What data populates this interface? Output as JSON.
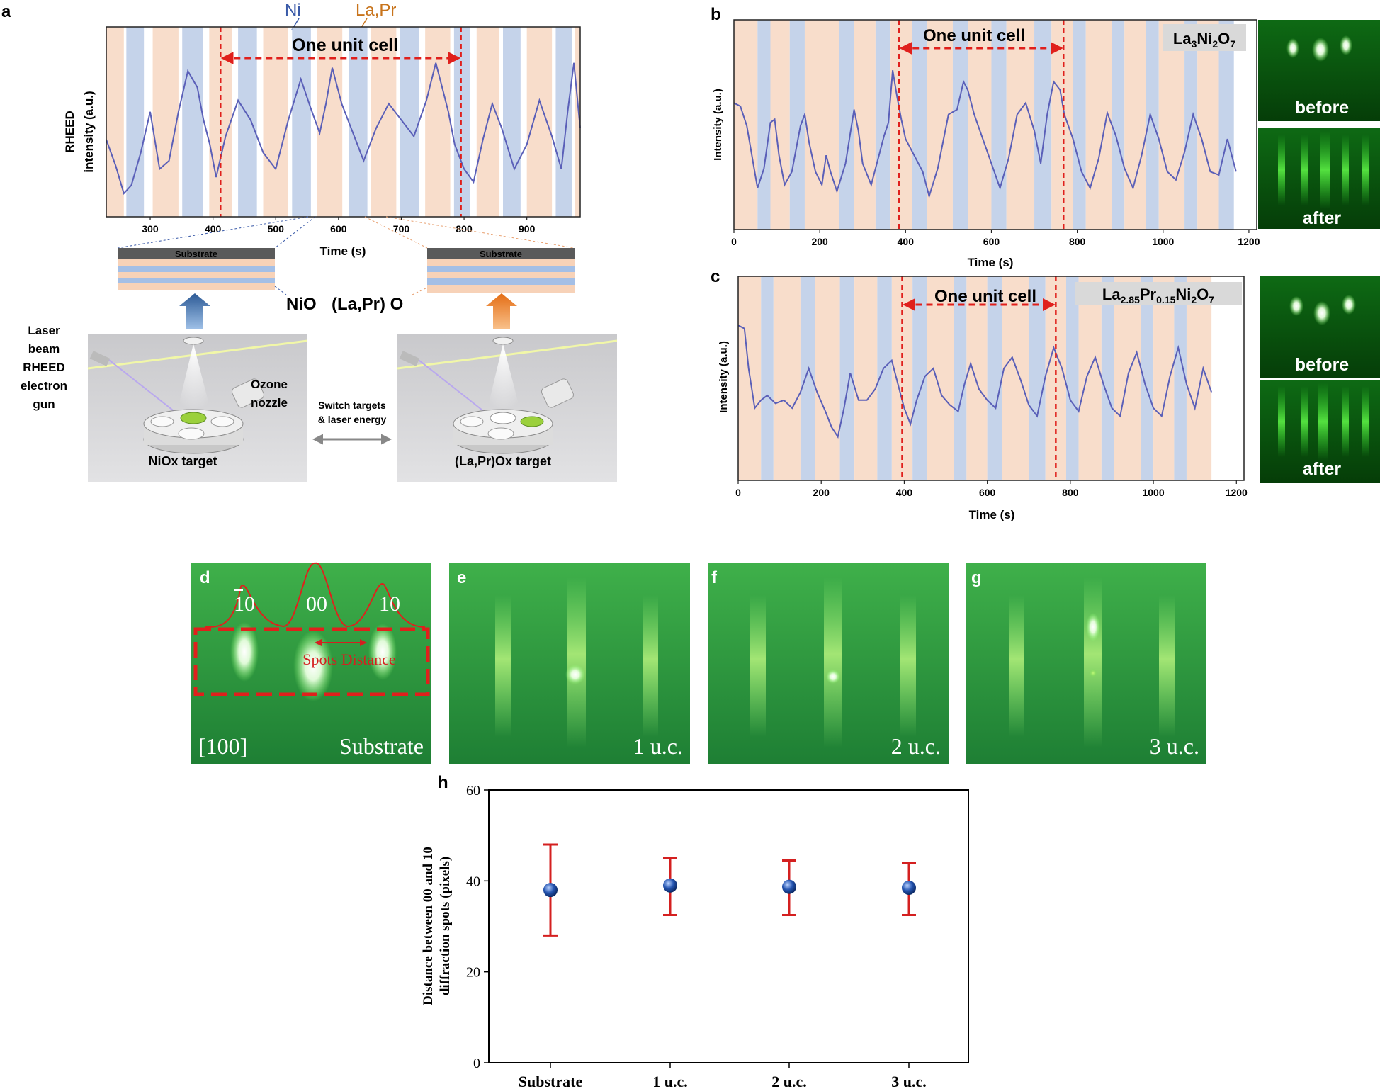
{
  "panel_labels": {
    "a": "a",
    "b": "b",
    "c": "c",
    "d": "d",
    "e": "e",
    "f": "f",
    "g": "g",
    "h": "h"
  },
  "colors": {
    "ni_band": "#c5d3ea",
    "lapr_band": "#f8ddcb",
    "trace": "#5a5fb8",
    "trace_dark": "#2a2fa8",
    "unit_cell": "#e0201c",
    "ni_text": "#3a5aa8",
    "lapr_text": "#c8741c",
    "rheed_green": "#2e9e3a",
    "errorbar": "#d42020",
    "marker": "#1d4b9a"
  },
  "panel_a": {
    "legend_ni": "Ni",
    "legend_lapr": "La,Pr",
    "unit_cell": "One unit cell",
    "ylabel_line1": "RHEED",
    "ylabel_line2": "intensity (a.u.)",
    "xlabel": "Time (s)",
    "xticks": [
      "300",
      "400",
      "500",
      "600",
      "700",
      "800",
      "900"
    ],
    "substrate_left": "Substrate",
    "substrate_right": "Substrate",
    "nio": "NiO",
    "lapro": "(La,Pr) O",
    "laser_label": [
      "Laser",
      "beam",
      "RHEED",
      "electron",
      "gun"
    ],
    "ozone_label": [
      "Ozone",
      "nozzle"
    ],
    "switch_label": [
      "Switch targets",
      "& laser energy"
    ],
    "target_left": "NiOx target",
    "target_right": "(La,Pr)Ox target"
  },
  "panel_b": {
    "unit_cell": "One unit cell",
    "sample_main": "La",
    "sample_sub1": "3",
    "sample_mid": "Ni",
    "sample_sub2": "2",
    "sample_end": "O",
    "sample_sub3": "7",
    "ylabel": "Intensity (a.u.)",
    "xlabel": "Time (s)",
    "xticks": [
      "0",
      "200",
      "400",
      "600",
      "800",
      "1000",
      "1200"
    ],
    "before": "before",
    "after": "after"
  },
  "panel_c": {
    "unit_cell": "One unit cell",
    "sample_main": "La",
    "sample_sub1": "2.85",
    "sample_mid": "Pr",
    "sample_sub2": "0.15",
    "sample_mid2": "Ni",
    "sample_sub3": "2",
    "sample_end": "O",
    "sample_sub4": "7",
    "ylabel": "Intensity (a.u.)",
    "xlabel": "Time (s)",
    "xticks": [
      "0",
      "200",
      "400",
      "600",
      "800",
      "1000",
      "1200"
    ],
    "before": "before",
    "after": "after"
  },
  "panel_d": {
    "spot_bar10": "10",
    "spot_00": "00",
    "spot_10": "10",
    "spots_distance": "Spots Distance",
    "direction": "[100]",
    "caption": "Substrate"
  },
  "panel_e": {
    "caption": "1 u.c."
  },
  "panel_f": {
    "caption": "2 u.c."
  },
  "panel_g": {
    "caption": "3 u.c."
  },
  "chart_data": [
    {
      "type": "line",
      "panel": "a",
      "xlabel": "Time (s)",
      "ylabel": "RHEED intensity (a.u.)",
      "xlim": [
        230,
        985
      ],
      "ylim": [
        0,
        1
      ],
      "annotation": "One unit cell",
      "unit_cell_range": [
        412,
        795
      ],
      "series": [
        {
          "name": "RHEED",
          "x": [
            230,
            245,
            258,
            270,
            285,
            300,
            315,
            330,
            345,
            360,
            375,
            385,
            395,
            405,
            420,
            440,
            460,
            480,
            500,
            520,
            540,
            555,
            570,
            580,
            590,
            605,
            620,
            640,
            660,
            680,
            700,
            720,
            740,
            755,
            765,
            775,
            785,
            800,
            815,
            830,
            845,
            860,
            880,
            900,
            920,
            940,
            955,
            965,
            975,
            985
          ],
          "y": [
            0.38,
            0.22,
            0.05,
            0.1,
            0.3,
            0.55,
            0.2,
            0.25,
            0.55,
            0.8,
            0.7,
            0.5,
            0.35,
            0.15,
            0.4,
            0.62,
            0.5,
            0.3,
            0.2,
            0.5,
            0.75,
            0.58,
            0.42,
            0.6,
            0.82,
            0.6,
            0.45,
            0.25,
            0.45,
            0.6,
            0.5,
            0.4,
            0.62,
            0.85,
            0.7,
            0.55,
            0.35,
            0.2,
            0.12,
            0.38,
            0.6,
            0.45,
            0.2,
            0.35,
            0.62,
            0.4,
            0.2,
            0.55,
            0.85,
            0.45
          ]
        }
      ],
      "bands": [
        {
          "start": 230,
          "end": 258,
          "kind": "lapr"
        },
        {
          "start": 262,
          "end": 290,
          "kind": "ni"
        },
        {
          "start": 304,
          "end": 345,
          "kind": "lapr"
        },
        {
          "start": 351,
          "end": 384,
          "kind": "ni"
        },
        {
          "start": 394,
          "end": 430,
          "kind": "lapr"
        },
        {
          "start": 440,
          "end": 470,
          "kind": "ni"
        },
        {
          "start": 480,
          "end": 520,
          "kind": "lapr"
        },
        {
          "start": 526,
          "end": 556,
          "kind": "ni"
        },
        {
          "start": 566,
          "end": 606,
          "kind": "lapr"
        },
        {
          "start": 616,
          "end": 646,
          "kind": "ni"
        },
        {
          "start": 652,
          "end": 692,
          "kind": "lapr"
        },
        {
          "start": 698,
          "end": 728,
          "kind": "ni"
        },
        {
          "start": 738,
          "end": 778,
          "kind": "lapr"
        },
        {
          "start": 784,
          "end": 810,
          "kind": "ni"
        },
        {
          "start": 820,
          "end": 856,
          "kind": "lapr"
        },
        {
          "start": 862,
          "end": 890,
          "kind": "ni"
        },
        {
          "start": 900,
          "end": 940,
          "kind": "lapr"
        },
        {
          "start": 946,
          "end": 972,
          "kind": "ni"
        },
        {
          "start": 976,
          "end": 985,
          "kind": "lapr"
        }
      ]
    },
    {
      "type": "line",
      "panel": "b",
      "title": "La3Ni2O7",
      "xlabel": "Time (s)",
      "ylabel": "Intensity (a.u.)",
      "xlim": [
        0,
        1200
      ],
      "ylim": [
        0,
        1
      ],
      "annotation": "One unit cell",
      "unit_cell_range": [
        385,
        768
      ],
      "series": [
        {
          "name": "La3Ni2O7",
          "x": [
            0,
            15,
            30,
            45,
            55,
            70,
            85,
            95,
            105,
            118,
            135,
            155,
            165,
            175,
            190,
            205,
            215,
            225,
            240,
            260,
            280,
            290,
            300,
            320,
            340,
            350,
            360,
            370,
            380,
            390,
            400,
            420,
            440,
            455,
            475,
            500,
            520,
            535,
            545,
            560,
            580,
            600,
            620,
            640,
            660,
            680,
            700,
            715,
            730,
            745,
            760,
            770,
            790,
            810,
            830,
            850,
            870,
            890,
            910,
            930,
            950,
            970,
            990,
            1010,
            1030,
            1050,
            1070,
            1090,
            1110,
            1130,
            1150,
            1170
          ],
          "y": [
            0.62,
            0.6,
            0.48,
            0.25,
            0.1,
            0.22,
            0.5,
            0.52,
            0.3,
            0.12,
            0.2,
            0.48,
            0.55,
            0.38,
            0.2,
            0.12,
            0.3,
            0.2,
            0.08,
            0.25,
            0.58,
            0.45,
            0.25,
            0.12,
            0.32,
            0.42,
            0.5,
            0.82,
            0.66,
            0.52,
            0.4,
            0.3,
            0.2,
            0.05,
            0.22,
            0.55,
            0.58,
            0.75,
            0.7,
            0.55,
            0.4,
            0.25,
            0.1,
            0.28,
            0.55,
            0.62,
            0.45,
            0.25,
            0.55,
            0.75,
            0.7,
            0.55,
            0.4,
            0.2,
            0.1,
            0.28,
            0.56,
            0.42,
            0.22,
            0.1,
            0.3,
            0.55,
            0.4,
            0.2,
            0.15,
            0.32,
            0.55,
            0.4,
            0.2,
            0.18,
            0.4,
            0.2
          ]
        }
      ],
      "bands": [
        {
          "start": 0,
          "end": 55,
          "kind": "lapr"
        },
        {
          "start": 55,
          "end": 85,
          "kind": "ni"
        },
        {
          "start": 85,
          "end": 130,
          "kind": "lapr"
        },
        {
          "start": 130,
          "end": 165,
          "kind": "ni"
        },
        {
          "start": 165,
          "end": 245,
          "kind": "lapr"
        },
        {
          "start": 245,
          "end": 280,
          "kind": "ni"
        },
        {
          "start": 280,
          "end": 330,
          "kind": "lapr"
        },
        {
          "start": 330,
          "end": 365,
          "kind": "ni"
        },
        {
          "start": 365,
          "end": 415,
          "kind": "lapr"
        },
        {
          "start": 415,
          "end": 450,
          "kind": "ni"
        },
        {
          "start": 450,
          "end": 510,
          "kind": "lapr"
        },
        {
          "start": 510,
          "end": 545,
          "kind": "ni"
        },
        {
          "start": 545,
          "end": 600,
          "kind": "lapr"
        },
        {
          "start": 600,
          "end": 635,
          "kind": "ni"
        },
        {
          "start": 635,
          "end": 700,
          "kind": "lapr"
        },
        {
          "start": 700,
          "end": 740,
          "kind": "ni"
        },
        {
          "start": 740,
          "end": 790,
          "kind": "lapr"
        },
        {
          "start": 790,
          "end": 820,
          "kind": "ni"
        },
        {
          "start": 820,
          "end": 880,
          "kind": "lapr"
        },
        {
          "start": 880,
          "end": 910,
          "kind": "ni"
        },
        {
          "start": 910,
          "end": 960,
          "kind": "lapr"
        },
        {
          "start": 960,
          "end": 990,
          "kind": "ni"
        },
        {
          "start": 990,
          "end": 1050,
          "kind": "lapr"
        },
        {
          "start": 1050,
          "end": 1080,
          "kind": "ni"
        },
        {
          "start": 1080,
          "end": 1130,
          "kind": "lapr"
        },
        {
          "start": 1130,
          "end": 1165,
          "kind": "ni"
        }
      ]
    },
    {
      "type": "line",
      "panel": "c",
      "title": "La2.85Pr0.15Ni2O7",
      "xlabel": "Time (s)",
      "ylabel": "Intensity (a.u.)",
      "xlim": [
        0,
        1200
      ],
      "ylim": [
        0,
        1
      ],
      "annotation": "One unit cell",
      "unit_cell_range": [
        395,
        765
      ],
      "series": [
        {
          "name": "La2.85Pr0.15Ni2O7",
          "x": [
            0,
            15,
            25,
            40,
            55,
            70,
            90,
            110,
            130,
            150,
            170,
            190,
            210,
            225,
            240,
            255,
            270,
            290,
            310,
            330,
            350,
            370,
            385,
            400,
            415,
            430,
            450,
            470,
            490,
            510,
            530,
            545,
            560,
            580,
            600,
            620,
            640,
            660,
            680,
            700,
            720,
            740,
            760,
            780,
            800,
            820,
            840,
            860,
            880,
            900,
            920,
            940,
            960,
            980,
            1000,
            1020,
            1040,
            1060,
            1080,
            1100,
            1120,
            1140
          ],
          "y": [
            0.82,
            0.8,
            0.55,
            0.3,
            0.35,
            0.38,
            0.33,
            0.35,
            0.3,
            0.4,
            0.55,
            0.4,
            0.28,
            0.18,
            0.12,
            0.3,
            0.52,
            0.35,
            0.35,
            0.42,
            0.55,
            0.6,
            0.45,
            0.3,
            0.2,
            0.35,
            0.5,
            0.55,
            0.38,
            0.32,
            0.28,
            0.45,
            0.58,
            0.42,
            0.35,
            0.3,
            0.55,
            0.62,
            0.48,
            0.32,
            0.25,
            0.5,
            0.68,
            0.55,
            0.35,
            0.28,
            0.5,
            0.62,
            0.45,
            0.3,
            0.25,
            0.52,
            0.65,
            0.45,
            0.3,
            0.25,
            0.5,
            0.68,
            0.45,
            0.3,
            0.55,
            0.4
          ]
        }
      ],
      "bands": [
        {
          "start": 0,
          "end": 55,
          "kind": "lapr"
        },
        {
          "start": 55,
          "end": 85,
          "kind": "ni"
        },
        {
          "start": 85,
          "end": 150,
          "kind": "lapr"
        },
        {
          "start": 150,
          "end": 185,
          "kind": "ni"
        },
        {
          "start": 185,
          "end": 245,
          "kind": "lapr"
        },
        {
          "start": 245,
          "end": 280,
          "kind": "ni"
        },
        {
          "start": 280,
          "end": 335,
          "kind": "lapr"
        },
        {
          "start": 335,
          "end": 370,
          "kind": "ni"
        },
        {
          "start": 370,
          "end": 420,
          "kind": "lapr"
        },
        {
          "start": 420,
          "end": 455,
          "kind": "ni"
        },
        {
          "start": 455,
          "end": 520,
          "kind": "lapr"
        },
        {
          "start": 520,
          "end": 550,
          "kind": "ni"
        },
        {
          "start": 550,
          "end": 600,
          "kind": "lapr"
        },
        {
          "start": 600,
          "end": 635,
          "kind": "ni"
        },
        {
          "start": 635,
          "end": 700,
          "kind": "lapr"
        },
        {
          "start": 700,
          "end": 740,
          "kind": "ni"
        },
        {
          "start": 740,
          "end": 790,
          "kind": "lapr"
        },
        {
          "start": 790,
          "end": 820,
          "kind": "ni"
        },
        {
          "start": 820,
          "end": 875,
          "kind": "lapr"
        },
        {
          "start": 875,
          "end": 905,
          "kind": "ni"
        },
        {
          "start": 905,
          "end": 970,
          "kind": "lapr"
        },
        {
          "start": 970,
          "end": 1000,
          "kind": "ni"
        },
        {
          "start": 1000,
          "end": 1050,
          "kind": "lapr"
        },
        {
          "start": 1050,
          "end": 1080,
          "kind": "ni"
        },
        {
          "start": 1080,
          "end": 1140,
          "kind": "lapr"
        }
      ]
    },
    {
      "type": "scatter",
      "panel": "h",
      "ylabel": "Distance between 00 and 10 diffraction spots (pixels)",
      "categories": [
        "Substrate",
        "1 u.c.",
        "2 u.c.",
        "3 u.c."
      ],
      "values": [
        38,
        39,
        38.7,
        38.5
      ],
      "error_low": [
        28,
        32.5,
        32.5,
        32.5
      ],
      "error_high": [
        48,
        45,
        44.5,
        44
      ],
      "ylim": [
        0,
        60
      ],
      "yticks": [
        "0",
        "20",
        "40",
        "60"
      ],
      "grid": false
    }
  ]
}
